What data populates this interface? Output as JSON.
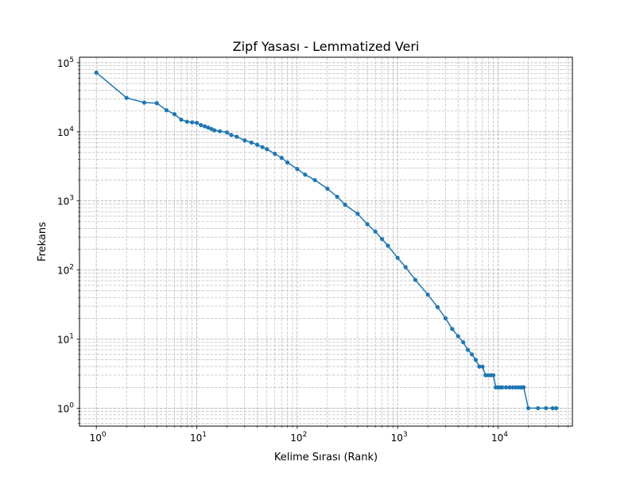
{
  "chart_data": {
    "type": "line",
    "title": "Zipf Yasası - Lemmatized Veri",
    "xlabel": "Kelime Sırası (Rank)",
    "ylabel": "Frekans",
    "x_scale": "log",
    "y_scale": "log",
    "xlim": [
      0.68,
      55000
    ],
    "ylim": [
      0.55,
      120000
    ],
    "grid": "both-major-minor-dashed",
    "legend": "none",
    "x_ticks": [
      {
        "base": "10",
        "exp": "0",
        "value": 1
      },
      {
        "base": "10",
        "exp": "1",
        "value": 10
      },
      {
        "base": "10",
        "exp": "2",
        "value": 100
      },
      {
        "base": "10",
        "exp": "3",
        "value": 1000
      },
      {
        "base": "10",
        "exp": "4",
        "value": 10000
      }
    ],
    "y_ticks": [
      {
        "base": "10",
        "exp": "0",
        "value": 1
      },
      {
        "base": "10",
        "exp": "1",
        "value": 10
      },
      {
        "base": "10",
        "exp": "2",
        "value": 100
      },
      {
        "base": "10",
        "exp": "3",
        "value": 1000
      },
      {
        "base": "10",
        "exp": "4",
        "value": 10000
      },
      {
        "base": "10",
        "exp": "5",
        "value": 100000
      }
    ],
    "series": [
      {
        "color": "#1f77b4",
        "x": [
          1,
          2,
          3,
          4,
          5,
          6,
          7,
          8,
          9,
          10,
          11,
          12,
          13,
          14,
          15,
          17,
          20,
          22,
          25,
          30,
          35,
          40,
          45,
          50,
          60,
          70,
          80,
          100,
          120,
          150,
          200,
          250,
          300,
          400,
          500,
          600,
          700,
          800,
          1000,
          1200,
          1500,
          2000,
          2500,
          3000,
          3500,
          4000,
          4500,
          5000,
          5500,
          6000,
          6500,
          7000,
          7500,
          8000,
          8500,
          9000,
          9500,
          10000,
          10500,
          11000,
          12000,
          13000,
          14000,
          15000,
          16000,
          17000,
          18000,
          20000,
          25000,
          30000,
          35000,
          38000
        ],
        "y": [
          72000,
          31000,
          26500,
          26000,
          20500,
          18000,
          15000,
          14000,
          13700,
          13500,
          12500,
          12000,
          11500,
          11000,
          10500,
          10200,
          9800,
          9000,
          8500,
          7500,
          7000,
          6500,
          6000,
          5600,
          4800,
          4200,
          3600,
          2900,
          2400,
          2000,
          1500,
          1150,
          880,
          650,
          460,
          360,
          280,
          225,
          150,
          110,
          72,
          44,
          29,
          20,
          14,
          11,
          9,
          7,
          6,
          5,
          4,
          4,
          3,
          3,
          3,
          3,
          2,
          2,
          2,
          2,
          2,
          2,
          2,
          2,
          2,
          2,
          2,
          1,
          1,
          1,
          1,
          1
        ]
      }
    ]
  }
}
